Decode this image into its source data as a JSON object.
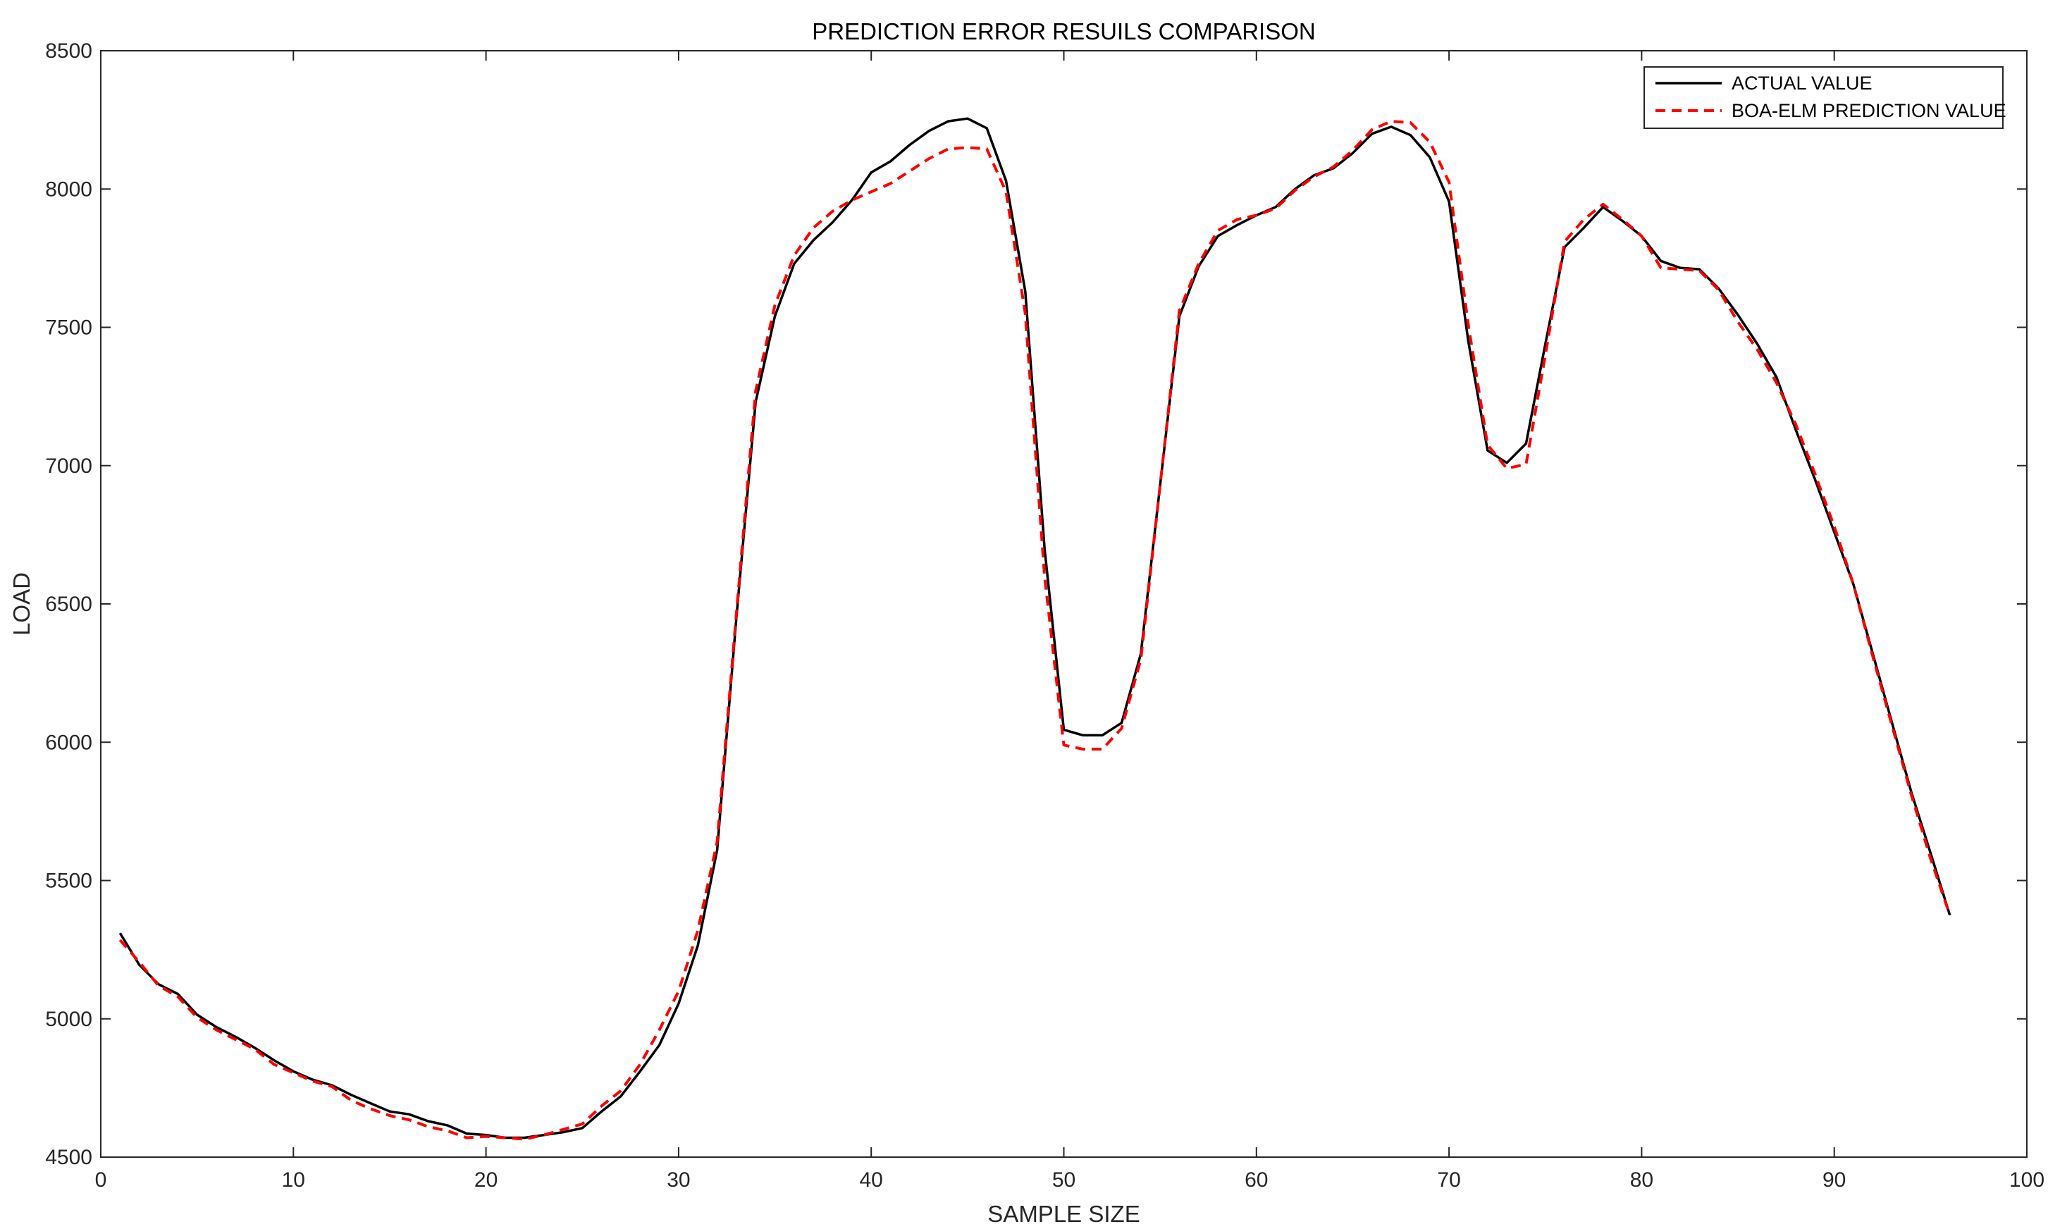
{
  "chart_data": {
    "type": "line",
    "title": "PREDICTION ERROR RESUILS COMPARISON",
    "xlabel": "SAMPLE SIZE",
    "ylabel": "LOAD",
    "xlim": [
      0,
      100
    ],
    "ylim": [
      4500,
      8500
    ],
    "xticks": [
      0,
      10,
      20,
      30,
      40,
      50,
      60,
      70,
      80,
      90,
      100
    ],
    "yticks": [
      4500,
      5000,
      5500,
      6000,
      6500,
      7000,
      7500,
      8000,
      8500
    ],
    "grid": false,
    "legend_position": "top-right",
    "x": [
      1,
      2,
      3,
      4,
      5,
      6,
      7,
      8,
      9,
      10,
      11,
      12,
      13,
      14,
      15,
      16,
      17,
      18,
      19,
      20,
      21,
      22,
      23,
      24,
      25,
      26,
      27,
      28,
      29,
      30,
      31,
      32,
      33,
      34,
      35,
      36,
      37,
      38,
      39,
      40,
      41,
      42,
      43,
      44,
      45,
      46,
      47,
      48,
      49,
      50,
      51,
      52,
      53,
      54,
      55,
      56,
      57,
      58,
      59,
      60,
      61,
      62,
      63,
      64,
      65,
      66,
      67,
      68,
      69,
      70,
      71,
      72,
      73,
      74,
      75,
      76,
      77,
      78,
      79,
      80,
      81,
      82,
      83,
      84,
      85,
      86,
      87,
      88,
      89,
      90,
      91,
      92,
      93,
      94,
      95,
      96
    ],
    "series": [
      {
        "name": "ACTUAL VALUE",
        "color": "#000000",
        "style": "solid",
        "values": [
          5310,
          5195,
          5125,
          5090,
          5015,
          4970,
          4935,
          4895,
          4850,
          4810,
          4780,
          4760,
          4725,
          4695,
          4665,
          4655,
          4630,
          4615,
          4585,
          4580,
          4570,
          4570,
          4580,
          4590,
          4605,
          4665,
          4720,
          4810,
          4905,
          5055,
          5265,
          5610,
          6450,
          7230,
          7540,
          7730,
          7815,
          7880,
          7960,
          8060,
          8100,
          8160,
          8210,
          8245,
          8255,
          8220,
          8030,
          7630,
          6700,
          6045,
          6025,
          6025,
          6070,
          6320,
          6930,
          7540,
          7720,
          7830,
          7870,
          7905,
          7935,
          8000,
          8050,
          8075,
          8130,
          8200,
          8225,
          8195,
          8115,
          7955,
          7450,
          7055,
          7010,
          7080,
          7440,
          7790,
          7860,
          7935,
          7885,
          7830,
          7740,
          7715,
          7710,
          7640,
          7545,
          7440,
          7320,
          7130,
          6950,
          6760,
          6570,
          6320,
          6070,
          5820,
          5600,
          5375
        ]
      },
      {
        "name": "BOA-ELM PREDICTION VALUE",
        "color": "#ff0000",
        "style": "dashed",
        "values": [
          5285,
          5205,
          5120,
          5080,
          5005,
          4960,
          4925,
          4890,
          4835,
          4805,
          4775,
          4755,
          4705,
          4675,
          4650,
          4635,
          4610,
          4595,
          4570,
          4575,
          4570,
          4565,
          4580,
          4600,
          4620,
          4685,
          4740,
          4835,
          4960,
          5100,
          5320,
          5640,
          6465,
          7270,
          7580,
          7760,
          7860,
          7920,
          7960,
          7990,
          8020,
          8065,
          8110,
          8145,
          8150,
          8145,
          7990,
          7550,
          6600,
          5990,
          5975,
          5975,
          6050,
          6300,
          6930,
          7560,
          7730,
          7850,
          7890,
          7905,
          7930,
          7995,
          8045,
          8080,
          8140,
          8215,
          8245,
          8240,
          8170,
          8025,
          7510,
          7075,
          6990,
          7005,
          7400,
          7810,
          7890,
          7945,
          7890,
          7830,
          7715,
          7710,
          7705,
          7635,
          7520,
          7420,
          7300,
          7150,
          6970,
          6780,
          6570,
          6310,
          6060,
          5810,
          5580,
          5375
        ]
      }
    ]
  }
}
